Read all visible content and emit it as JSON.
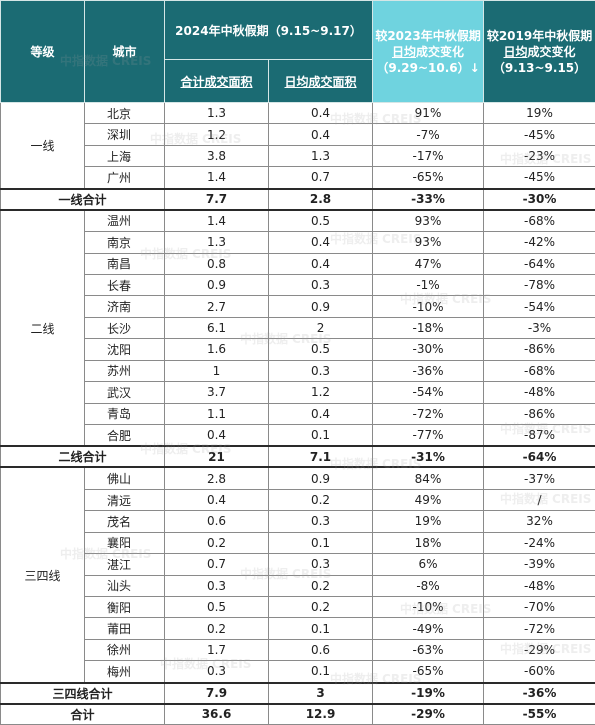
{
  "header": {
    "tier": "等级",
    "city": "城市",
    "period_2024": "2024年中秋假期（9.15~9.17）",
    "total_area": "合计成交面积",
    "daily_area": "日均成交面积",
    "vs2023_prefix": "较2023年中秋假期",
    "vs2023_ul": "日均",
    "vs2023_suffix": "成交变化（9.29~10.6）↓",
    "vs2019_prefix": "较2019年中秋假期",
    "vs2019_ul": "日均",
    "vs2019_suffix": "成交变化（9.13~9.15）"
  },
  "groups": [
    {
      "tier": "一线",
      "rows": [
        {
          "city": "北京",
          "total": "1.3",
          "daily": "0.4",
          "vs2023": "91%",
          "vs2019": "19%"
        },
        {
          "city": "深圳",
          "total": "1.2",
          "daily": "0.4",
          "vs2023": "-7%",
          "vs2019": "-45%"
        },
        {
          "city": "上海",
          "total": "3.8",
          "daily": "1.3",
          "vs2023": "-17%",
          "vs2019": "-23%"
        },
        {
          "city": "广州",
          "total": "1.4",
          "daily": "0.7",
          "vs2023": "-65%",
          "vs2019": "-45%"
        }
      ],
      "subtotal": {
        "label": "一线合计",
        "total": "7.7",
        "daily": "2.8",
        "vs2023": "-33%",
        "vs2019": "-30%"
      }
    },
    {
      "tier": "二线",
      "rows": [
        {
          "city": "温州",
          "total": "1.4",
          "daily": "0.5",
          "vs2023": "93%",
          "vs2019": "-68%"
        },
        {
          "city": "南京",
          "total": "1.3",
          "daily": "0.4",
          "vs2023": "93%",
          "vs2019": "-42%"
        },
        {
          "city": "南昌",
          "total": "0.8",
          "daily": "0.4",
          "vs2023": "47%",
          "vs2019": "-64%"
        },
        {
          "city": "长春",
          "total": "0.9",
          "daily": "0.3",
          "vs2023": "-1%",
          "vs2019": "-78%"
        },
        {
          "city": "济南",
          "total": "2.7",
          "daily": "0.9",
          "vs2023": "-10%",
          "vs2019": "-54%"
        },
        {
          "city": "长沙",
          "total": "6.1",
          "daily": "2",
          "vs2023": "-18%",
          "vs2019": "-3%"
        },
        {
          "city": "沈阳",
          "total": "1.6",
          "daily": "0.5",
          "vs2023": "-30%",
          "vs2019": "-86%"
        },
        {
          "city": "苏州",
          "total": "1",
          "daily": "0.3",
          "vs2023": "-36%",
          "vs2019": "-68%"
        },
        {
          "city": "武汉",
          "total": "3.7",
          "daily": "1.2",
          "vs2023": "-54%",
          "vs2019": "-48%"
        },
        {
          "city": "青岛",
          "total": "1.1",
          "daily": "0.4",
          "vs2023": "-72%",
          "vs2019": "-86%"
        },
        {
          "city": "合肥",
          "total": "0.4",
          "daily": "0.1",
          "vs2023": "-77%",
          "vs2019": "-87%"
        }
      ],
      "subtotal": {
        "label": "二线合计",
        "total": "21",
        "daily": "7.1",
        "vs2023": "-31%",
        "vs2019": "-64%"
      }
    },
    {
      "tier": "三四线",
      "rows": [
        {
          "city": "佛山",
          "total": "2.8",
          "daily": "0.9",
          "vs2023": "84%",
          "vs2019": "-37%"
        },
        {
          "city": "清远",
          "total": "0.4",
          "daily": "0.2",
          "vs2023": "49%",
          "vs2019": "/"
        },
        {
          "city": "茂名",
          "total": "0.6",
          "daily": "0.3",
          "vs2023": "19%",
          "vs2019": "32%"
        },
        {
          "city": "襄阳",
          "total": "0.2",
          "daily": "0.1",
          "vs2023": "18%",
          "vs2019": "-24%"
        },
        {
          "city": "湛江",
          "total": "0.7",
          "daily": "0.3",
          "vs2023": "6%",
          "vs2019": "-39%"
        },
        {
          "city": "汕头",
          "total": "0.3",
          "daily": "0.2",
          "vs2023": "-8%",
          "vs2019": "-48%"
        },
        {
          "city": "衡阳",
          "total": "0.5",
          "daily": "0.2",
          "vs2023": "-10%",
          "vs2019": "-70%"
        },
        {
          "city": "莆田",
          "total": "0.2",
          "daily": "0.1",
          "vs2023": "-49%",
          "vs2019": "-72%"
        },
        {
          "city": "徐州",
          "total": "1.7",
          "daily": "0.6",
          "vs2023": "-63%",
          "vs2019": "-29%"
        },
        {
          "city": "梅州",
          "total": "0.3",
          "daily": "0.1",
          "vs2023": "-65%",
          "vs2019": "-60%"
        }
      ],
      "subtotal": {
        "label": "三四线合计",
        "total": "7.9",
        "daily": "3",
        "vs2023": "-19%",
        "vs2019": "-36%"
      }
    }
  ],
  "grand_total": {
    "label": "合计",
    "total": "36.6",
    "daily": "12.9",
    "vs2023": "-29%",
    "vs2019": "-55%"
  },
  "watermark": {
    "cn": "中指数据",
    "en": "CREIS"
  },
  "colors": {
    "header_bg": "#1b6b73",
    "highlight_header_bg": "#6fd3df",
    "header_text": "#ffffff",
    "border": "#8a8a8a"
  }
}
